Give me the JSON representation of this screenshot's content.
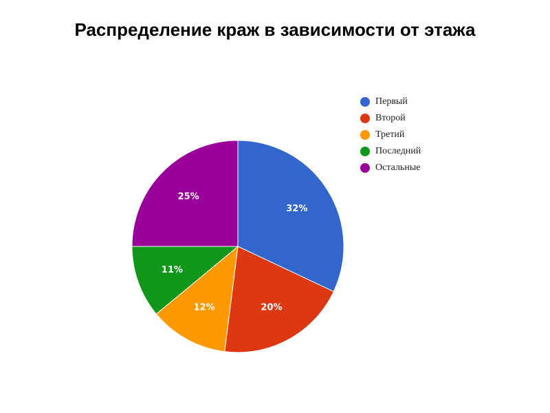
{
  "chart_data": {
    "type": "pie",
    "title": "Распределение краж в зависимости от этажа",
    "legend_position": "right",
    "slices": [
      {
        "name": "Первый",
        "value": 32,
        "label": "32%",
        "color": "#3366CC"
      },
      {
        "name": "Второй",
        "value": 20,
        "label": "20%",
        "color": "#DC3912"
      },
      {
        "name": "Третий",
        "value": 12,
        "label": "12%",
        "color": "#FF9900"
      },
      {
        "name": "Последний",
        "value": 11,
        "label": "11%",
        "color": "#109618"
      },
      {
        "name": "Остальные",
        "value": 25,
        "label": "25%",
        "color": "#990099"
      }
    ]
  }
}
